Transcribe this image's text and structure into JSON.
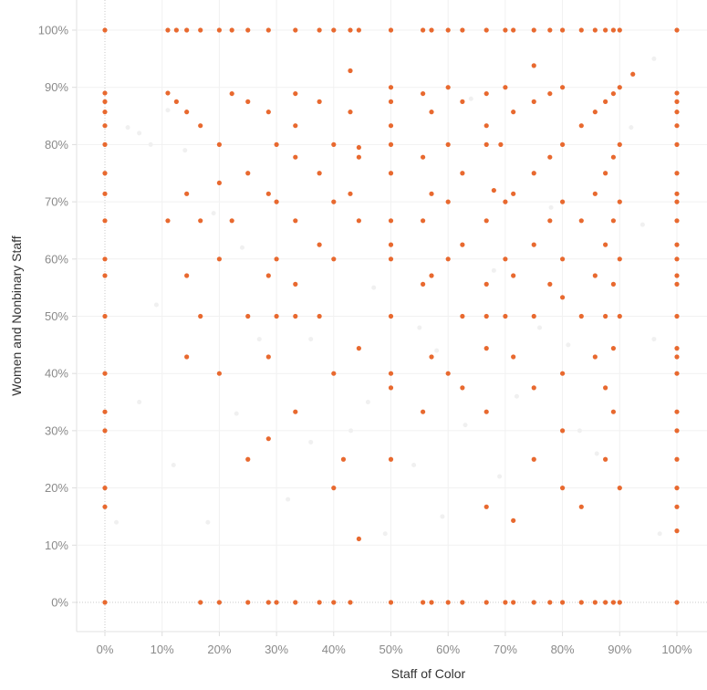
{
  "chart_data": {
    "type": "scatter",
    "xlabel": "Staff of Color",
    "ylabel": "Women and Nonbinary Staff",
    "xlim": [
      0,
      100
    ],
    "ylim": [
      0,
      100
    ],
    "x_ticks": [
      "0%",
      "10%",
      "20%",
      "30%",
      "40%",
      "50%",
      "60%",
      "70%",
      "80%",
      "90%",
      "100%"
    ],
    "y_ticks": [
      "0%",
      "10%",
      "20%",
      "30%",
      "40%",
      "50%",
      "60%",
      "70%",
      "80%",
      "90%",
      "100%"
    ],
    "grid": true,
    "marker_color": "#E8692F",
    "faded_marker_color": "#F0F0F0",
    "points": [
      [
        0,
        100
      ],
      [
        11,
        100
      ],
      [
        12.5,
        100
      ],
      [
        14.3,
        100
      ],
      [
        16.7,
        100
      ],
      [
        20,
        100
      ],
      [
        22.2,
        100
      ],
      [
        25,
        100
      ],
      [
        28.6,
        100
      ],
      [
        33.3,
        100
      ],
      [
        37.5,
        100
      ],
      [
        40,
        100
      ],
      [
        42.9,
        100
      ],
      [
        44.4,
        100
      ],
      [
        50,
        100
      ],
      [
        55.6,
        100
      ],
      [
        57.1,
        100
      ],
      [
        60,
        100
      ],
      [
        62.5,
        100
      ],
      [
        66.7,
        100
      ],
      [
        70,
        100
      ],
      [
        71.4,
        100
      ],
      [
        75,
        100
      ],
      [
        77.8,
        100
      ],
      [
        80,
        100
      ],
      [
        83.3,
        100
      ],
      [
        85.7,
        100
      ],
      [
        87.5,
        100
      ],
      [
        88.9,
        100
      ],
      [
        90,
        100
      ],
      [
        100,
        100
      ],
      [
        0,
        89
      ],
      [
        0,
        87.5
      ],
      [
        0,
        85.7
      ],
      [
        0,
        83.3
      ],
      [
        0,
        80
      ],
      [
        0,
        75
      ],
      [
        0,
        71.4
      ],
      [
        0,
        66.7
      ],
      [
        0,
        60
      ],
      [
        0,
        57.1
      ],
      [
        0,
        50
      ],
      [
        0,
        40
      ],
      [
        0,
        33.3
      ],
      [
        0,
        30
      ],
      [
        0,
        20
      ],
      [
        0,
        16.7
      ],
      [
        0,
        0
      ],
      [
        11,
        89
      ],
      [
        12.5,
        87.5
      ],
      [
        14.3,
        85.7
      ],
      [
        16.7,
        83.3
      ],
      [
        22.2,
        88.9
      ],
      [
        25,
        87.5
      ],
      [
        28.6,
        85.7
      ],
      [
        33.3,
        88.9
      ],
      [
        33.3,
        83.3
      ],
      [
        37.5,
        87.5
      ],
      [
        42.9,
        92.9
      ],
      [
        42.9,
        85.7
      ],
      [
        50,
        90
      ],
      [
        50,
        87.5
      ],
      [
        50,
        83.3
      ],
      [
        55.6,
        88.9
      ],
      [
        57.1,
        85.7
      ],
      [
        60,
        90
      ],
      [
        62.5,
        87.5
      ],
      [
        66.7,
        88.9
      ],
      [
        66.7,
        83.3
      ],
      [
        70,
        90
      ],
      [
        71.4,
        85.7
      ],
      [
        75,
        93.8
      ],
      [
        75,
        87.5
      ],
      [
        77.8,
        88.9
      ],
      [
        80,
        90
      ],
      [
        83.3,
        83.3
      ],
      [
        85.7,
        85.7
      ],
      [
        87.5,
        87.5
      ],
      [
        88.9,
        88.9
      ],
      [
        90,
        90
      ],
      [
        92.3,
        92.3
      ],
      [
        20,
        80
      ],
      [
        30,
        80
      ],
      [
        33.3,
        77.8
      ],
      [
        40,
        80
      ],
      [
        44.4,
        79.5
      ],
      [
        44.4,
        77.8
      ],
      [
        50,
        80
      ],
      [
        50,
        75
      ],
      [
        55.6,
        77.8
      ],
      [
        60,
        80
      ],
      [
        62.5,
        75
      ],
      [
        66.7,
        80
      ],
      [
        69.2,
        80
      ],
      [
        75,
        75
      ],
      [
        77.8,
        77.8
      ],
      [
        80,
        80
      ],
      [
        87.5,
        75
      ],
      [
        88.9,
        77.8
      ],
      [
        90,
        80
      ],
      [
        100,
        80
      ],
      [
        20,
        73.3
      ],
      [
        25,
        75
      ],
      [
        37.5,
        75
      ],
      [
        42.9,
        71.4
      ],
      [
        57.1,
        71.4
      ],
      [
        68,
        72
      ],
      [
        70,
        70
      ],
      [
        71.4,
        71.4
      ],
      [
        85.7,
        71.4
      ],
      [
        80,
        70
      ],
      [
        90,
        70
      ],
      [
        100,
        75
      ],
      [
        14.3,
        71.4
      ],
      [
        28.6,
        71.4
      ],
      [
        30,
        70
      ],
      [
        40,
        70
      ],
      [
        60,
        70
      ],
      [
        11,
        66.7
      ],
      [
        16.7,
        66.7
      ],
      [
        22.2,
        66.7
      ],
      [
        33.3,
        66.7
      ],
      [
        44.4,
        66.7
      ],
      [
        50,
        66.7
      ],
      [
        55.6,
        66.7
      ],
      [
        66.7,
        66.7
      ],
      [
        77.8,
        66.7
      ],
      [
        83.3,
        66.7
      ],
      [
        88.9,
        66.7
      ],
      [
        100,
        66.7
      ],
      [
        37.5,
        62.5
      ],
      [
        50,
        62.5
      ],
      [
        62.5,
        62.5
      ],
      [
        75,
        62.5
      ],
      [
        87.5,
        62.5
      ],
      [
        100,
        62.5
      ],
      [
        20,
        60
      ],
      [
        30,
        60
      ],
      [
        40,
        60
      ],
      [
        50,
        60
      ],
      [
        60,
        60
      ],
      [
        70,
        60
      ],
      [
        80,
        60
      ],
      [
        90,
        60
      ],
      [
        100,
        60
      ],
      [
        14.3,
        57.1
      ],
      [
        28.6,
        57.1
      ],
      [
        57.1,
        57.1
      ],
      [
        71.4,
        57.1
      ],
      [
        85.7,
        57.1
      ],
      [
        100,
        57.1
      ],
      [
        33.3,
        55.6
      ],
      [
        55.6,
        55.6
      ],
      [
        66.7,
        55.6
      ],
      [
        77.8,
        55.6
      ],
      [
        88.9,
        55.6
      ],
      [
        80,
        53.3
      ],
      [
        100,
        55.6
      ],
      [
        16.7,
        50
      ],
      [
        25,
        50
      ],
      [
        30,
        50
      ],
      [
        33.3,
        50
      ],
      [
        37.5,
        50
      ],
      [
        50,
        50
      ],
      [
        62.5,
        50
      ],
      [
        66.7,
        50
      ],
      [
        70,
        50
      ],
      [
        75,
        50
      ],
      [
        83.3,
        50
      ],
      [
        87.5,
        50
      ],
      [
        90,
        50
      ],
      [
        100,
        50
      ],
      [
        14.3,
        42.9
      ],
      [
        28.6,
        42.9
      ],
      [
        44.4,
        44.4
      ],
      [
        57.1,
        42.9
      ],
      [
        66.7,
        44.4
      ],
      [
        71.4,
        42.9
      ],
      [
        85.7,
        42.9
      ],
      [
        88.9,
        44.4
      ],
      [
        100,
        44.4
      ],
      [
        100,
        42.9
      ],
      [
        20,
        40
      ],
      [
        40,
        40
      ],
      [
        50,
        40
      ],
      [
        50,
        37.5
      ],
      [
        60,
        40
      ],
      [
        62.5,
        37.5
      ],
      [
        75,
        37.5
      ],
      [
        80,
        40
      ],
      [
        87.5,
        37.5
      ],
      [
        100,
        40
      ],
      [
        33.3,
        33.3
      ],
      [
        55.6,
        33.3
      ],
      [
        66.7,
        33.3
      ],
      [
        88.9,
        33.3
      ],
      [
        100,
        33.3
      ],
      [
        28.6,
        28.6
      ],
      [
        80,
        30
      ],
      [
        100,
        30
      ],
      [
        25,
        25
      ],
      [
        41.7,
        25
      ],
      [
        50,
        25
      ],
      [
        75,
        25
      ],
      [
        87.5,
        25
      ],
      [
        100,
        25
      ],
      [
        40,
        20
      ],
      [
        80,
        20
      ],
      [
        90,
        20
      ],
      [
        100,
        20
      ],
      [
        66.7,
        16.7
      ],
      [
        83.3,
        16.7
      ],
      [
        100,
        16.7
      ],
      [
        71.4,
        14.3
      ],
      [
        44.4,
        11.1
      ],
      [
        100,
        12.5
      ],
      [
        16.7,
        0
      ],
      [
        20,
        0
      ],
      [
        25,
        0
      ],
      [
        28.6,
        0
      ],
      [
        30,
        0
      ],
      [
        33.3,
        0
      ],
      [
        37.5,
        0
      ],
      [
        40,
        0
      ],
      [
        42.9,
        0
      ],
      [
        50,
        0
      ],
      [
        55.6,
        0
      ],
      [
        57.1,
        0
      ],
      [
        60,
        0
      ],
      [
        62.5,
        0
      ],
      [
        66.7,
        0
      ],
      [
        70,
        0
      ],
      [
        71.4,
        0
      ],
      [
        75,
        0
      ],
      [
        77.8,
        0
      ],
      [
        80,
        0
      ],
      [
        83.3,
        0
      ],
      [
        85.7,
        0
      ],
      [
        87.5,
        0
      ],
      [
        88.9,
        0
      ],
      [
        90,
        0
      ],
      [
        100,
        0
      ],
      [
        100,
        89
      ],
      [
        100,
        87.5
      ],
      [
        100,
        85.7
      ],
      [
        100,
        83.3
      ],
      [
        100,
        71.4
      ],
      [
        100,
        70
      ]
    ],
    "faded_points": [
      [
        4,
        83
      ],
      [
        6,
        82
      ],
      [
        8,
        80
      ],
      [
        11,
        86
      ],
      [
        14,
        79
      ],
      [
        19,
        68
      ],
      [
        24,
        62
      ],
      [
        27,
        46
      ],
      [
        36,
        46
      ],
      [
        43,
        30
      ],
      [
        46,
        35
      ],
      [
        54,
        24
      ],
      [
        58,
        44
      ],
      [
        63,
        31
      ],
      [
        69,
        22
      ],
      [
        76,
        48
      ],
      [
        83,
        30
      ],
      [
        86,
        26
      ],
      [
        94,
        66
      ],
      [
        96,
        46
      ],
      [
        97,
        12
      ],
      [
        2,
        14
      ],
      [
        9,
        52
      ],
      [
        18,
        14
      ],
      [
        32,
        18
      ],
      [
        49,
        12
      ],
      [
        55,
        48
      ],
      [
        64,
        88
      ],
      [
        72,
        36
      ],
      [
        78,
        69
      ],
      [
        92,
        83
      ],
      [
        96,
        95
      ],
      [
        6,
        35
      ],
      [
        12,
        24
      ],
      [
        23,
        33
      ],
      [
        36,
        28
      ],
      [
        47,
        55
      ],
      [
        59,
        15
      ],
      [
        68,
        58
      ],
      [
        81,
        45
      ]
    ]
  }
}
